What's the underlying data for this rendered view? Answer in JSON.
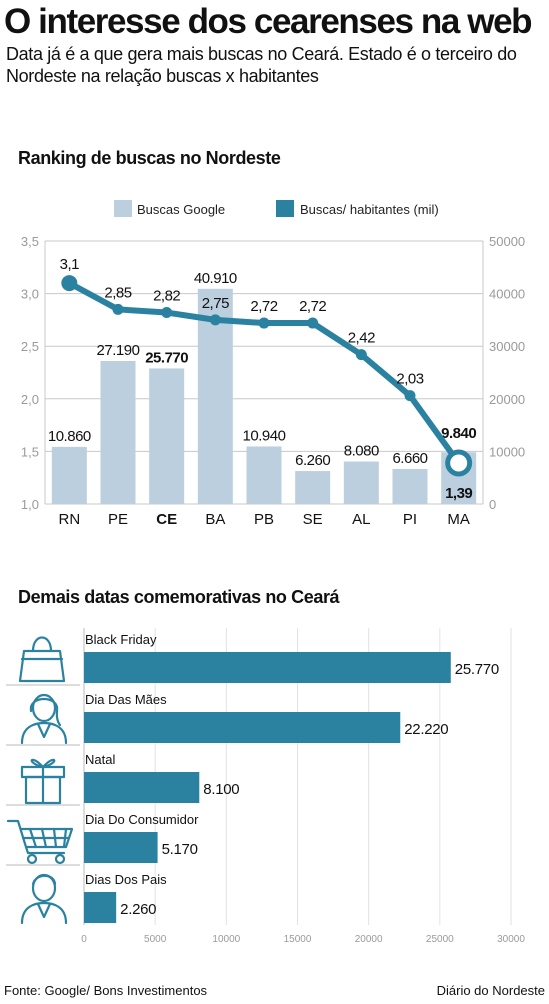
{
  "header": {
    "title": "O interesse dos cearenses na web",
    "subtitle": "Data já é a que gera mais buscas no Ceará. Estado é o terceiro do Nordeste na relação buscas x habitantes"
  },
  "footer": {
    "source": "Fonte: Google/ Bons Investimentos",
    "brand": "Diário do Nordeste"
  },
  "colors": {
    "bar": "#bccfde",
    "line": "#2a82a0",
    "grid": "#c8c8c8",
    "axis_text": "#9a9a9a"
  },
  "chart_data": [
    {
      "type": "bar",
      "title": "Ranking de buscas no Nordeste",
      "categories": [
        "RN",
        "PE",
        "CE",
        "BA",
        "PB",
        "SE",
        "AL",
        "PI",
        "MA"
      ],
      "highlight_category": "CE",
      "legend": [
        "Buscas Google",
        "Buscas/ habitantes (mil)"
      ],
      "legend_position": "top-center",
      "grid": true,
      "series": [
        {
          "name": "Buscas Google",
          "chart": "bar",
          "axis": "right",
          "values": [
            10860,
            27190,
            25770,
            40910,
            10940,
            6260,
            8080,
            6660,
            9840
          ],
          "labels": [
            "10.860",
            "27.190",
            "25.770",
            "40.910",
            "10.940",
            "6.260",
            "8.080",
            "6.660",
            "9.840"
          ]
        },
        {
          "name": "Buscas/ habitantes (mil)",
          "chart": "line",
          "axis": "left",
          "values": [
            3.1,
            2.85,
            2.82,
            2.75,
            2.72,
            2.72,
            2.42,
            2.03,
            1.39
          ],
          "labels": [
            "3,1",
            "2,85",
            "2,82",
            "2,75",
            "2,72",
            "2,72",
            "2,42",
            "2,03",
            "1,39"
          ]
        }
      ],
      "ylim_left": [
        1.0,
        3.5
      ],
      "yticks_left": [
        "1,0",
        "1,5",
        "2,0",
        "2,5",
        "3,0",
        "3,5"
      ],
      "ylim_right": [
        0,
        50000
      ],
      "yticks_right": [
        "0",
        "10000",
        "20000",
        "30000",
        "40000",
        "50000"
      ]
    },
    {
      "type": "bar",
      "orientation": "horizontal",
      "title": "Demais datas comemorativas no Ceará",
      "categories": [
        "Black Friday",
        "Dia Das Mães",
        "Natal",
        "Dia Do Consumidor",
        "Dias Dos Pais"
      ],
      "icons": [
        "shopping-bag-icon",
        "mother-icon",
        "gift-icon",
        "shopping-cart-icon",
        "father-icon"
      ],
      "values": [
        25770,
        22220,
        8100,
        5170,
        2260
      ],
      "labels": [
        "25.770",
        "22.220",
        "8.100",
        "5.170",
        "2.260"
      ],
      "xlim": [
        0,
        30000
      ],
      "xticks": [
        "0",
        "5000",
        "10000",
        "15000",
        "20000",
        "25000",
        "30000"
      ],
      "grid": true
    }
  ]
}
